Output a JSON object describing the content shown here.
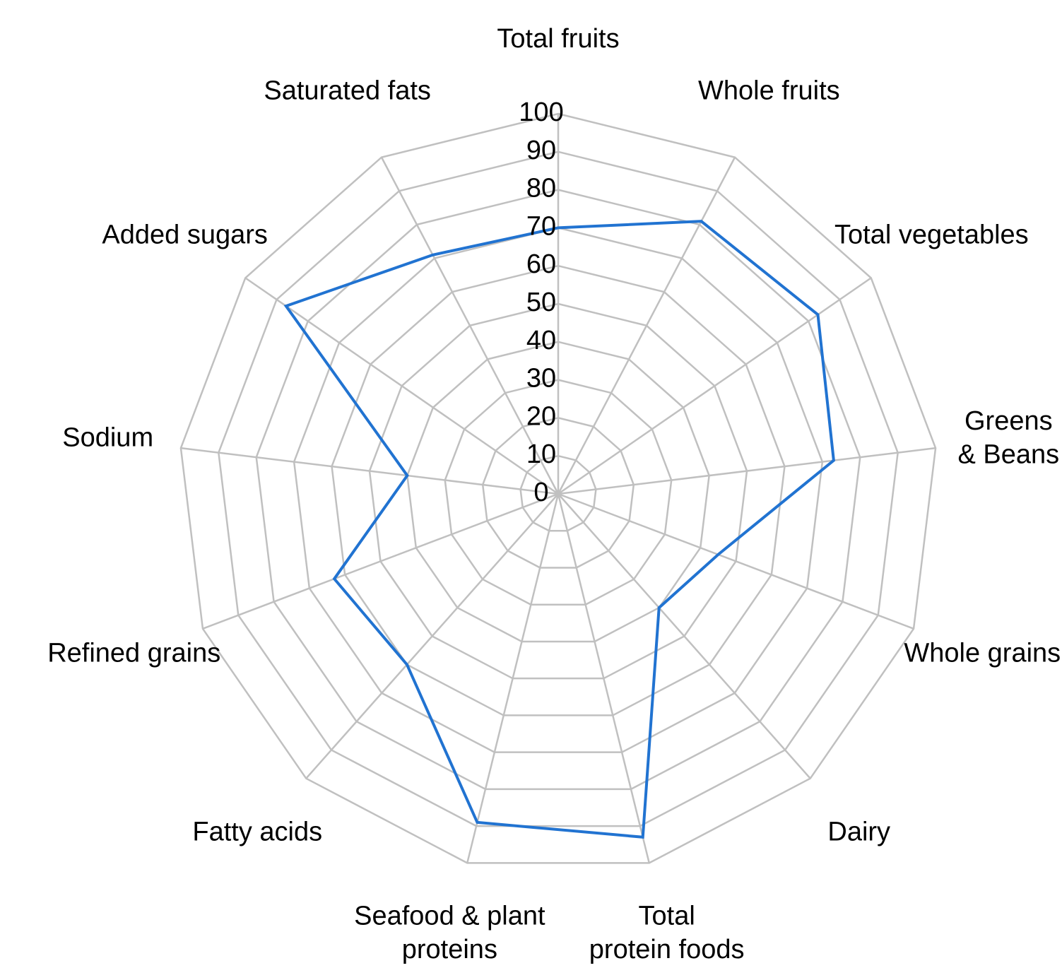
{
  "chart_data": {
    "type": "radar",
    "categories": [
      "Total fruits",
      "Whole fruits",
      "Total vegetables",
      "Greens\n& Beans",
      "Whole grains",
      "Dairy",
      "Total\nprotein foods",
      "Seafood & plant\nproteins",
      "Fatty acids",
      "Refined grains",
      "Sodium",
      "Added sugars",
      "Saturated fats"
    ],
    "series": [
      {
        "color": "#2173d1",
        "values": [
          70,
          81,
          83,
          73,
          45,
          40,
          93,
          89,
          60,
          63,
          40,
          87,
          71
        ]
      }
    ],
    "rlim": [
      0,
      100
    ],
    "rticks": [
      0,
      10,
      20,
      30,
      40,
      50,
      60,
      70,
      80,
      90,
      100
    ],
    "grid": true
  }
}
